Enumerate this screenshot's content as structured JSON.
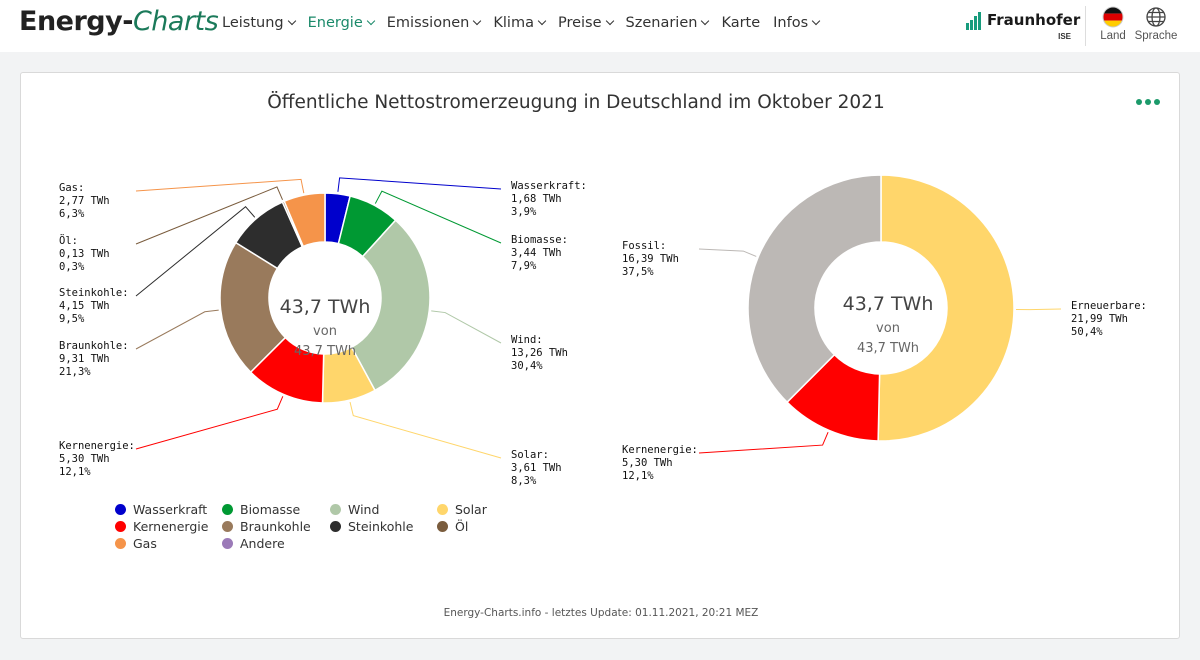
{
  "nav": {
    "logo_part1": "Energy-",
    "logo_part2": "Charts",
    "menu": [
      {
        "label": "Leistung",
        "dropdown": true,
        "active": false
      },
      {
        "label": "Energie",
        "dropdown": true,
        "active": true
      },
      {
        "label": "Emissionen",
        "dropdown": true,
        "active": false
      },
      {
        "label": "Klima",
        "dropdown": true,
        "active": false
      },
      {
        "label": "Preise",
        "dropdown": true,
        "active": false
      },
      {
        "label": "Szenarien",
        "dropdown": true,
        "active": false
      },
      {
        "label": "Karte",
        "dropdown": false,
        "active": false
      },
      {
        "label": "Infos",
        "dropdown": true,
        "active": false
      }
    ],
    "brand": {
      "name": "Fraunhofer",
      "sub": "ISE"
    },
    "land_label": "Land",
    "sprache_label": "Sprache",
    "accent_color": "#1b8a6a"
  },
  "chart_data": [
    {
      "type": "pie",
      "style": "donut",
      "title": "Öffentliche Nettostromerzeugung in Deutschland im Oktober 2021",
      "center": {
        "main": "43,7 TWh",
        "sub1": "von",
        "sub2": "43,7 TWh"
      },
      "unit": "TWh",
      "total": 43.7,
      "slices": [
        {
          "name": "Wasserkraft",
          "value": 1.68,
          "value_label": "1,68 TWh",
          "pct_label": "3,9%",
          "color": "#0000cc",
          "label_side": "right"
        },
        {
          "name": "Biomasse",
          "value": 3.44,
          "value_label": "3,44 TWh",
          "pct_label": "7,9%",
          "color": "#009933",
          "label_side": "right"
        },
        {
          "name": "Wind",
          "value": 13.26,
          "value_label": "13,26 TWh",
          "pct_label": "30,4%",
          "color": "#b0c8a8",
          "label_side": "right"
        },
        {
          "name": "Solar",
          "value": 3.61,
          "value_label": "3,61 TWh",
          "pct_label": "8,3%",
          "color": "#ffd66b",
          "label_side": "right"
        },
        {
          "name": "Kernenergie",
          "value": 5.3,
          "value_label": "5,30 TWh",
          "pct_label": "12,1%",
          "color": "#ff0000",
          "label_side": "left"
        },
        {
          "name": "Braunkohle",
          "value": 9.31,
          "value_label": "9,31 TWh",
          "pct_label": "21,3%",
          "color": "#997a5c",
          "label_side": "left"
        },
        {
          "name": "Steinkohle",
          "value": 4.15,
          "value_label": "4,15 TWh",
          "pct_label": "9,5%",
          "color": "#2d2d2d",
          "label_side": "left"
        },
        {
          "name": "Öl",
          "value": 0.13,
          "value_label": "0,13 TWh",
          "pct_label": "0,3%",
          "color": "#7a5c3d",
          "label_side": "left"
        },
        {
          "name": "Gas",
          "value": 2.77,
          "value_label": "2,77 TWh",
          "pct_label": "6,3%",
          "color": "#f5944a",
          "label_side": "left"
        }
      ],
      "legend": [
        {
          "name": "Wasserkraft",
          "color": "#0000cc"
        },
        {
          "name": "Biomasse",
          "color": "#009933"
        },
        {
          "name": "Wind",
          "color": "#b0c8a8"
        },
        {
          "name": "Solar",
          "color": "#ffd66b"
        },
        {
          "name": "Kernenergie",
          "color": "#ff0000"
        },
        {
          "name": "Braunkohle",
          "color": "#997a5c"
        },
        {
          "name": "Steinkohle",
          "color": "#2d2d2d"
        },
        {
          "name": "Öl",
          "color": "#7a5c3d"
        },
        {
          "name": "Gas",
          "color": "#f5944a"
        },
        {
          "name": "Andere",
          "color": "#9b7ab8"
        }
      ]
    },
    {
      "type": "pie",
      "style": "donut",
      "center": {
        "main": "43,7 TWh",
        "sub1": "von",
        "sub2": "43,7 TWh"
      },
      "unit": "TWh",
      "total": 43.7,
      "slices": [
        {
          "name": "Erneuerbare",
          "value": 21.99,
          "value_label": "21,99 TWh",
          "pct_label": "50,4%",
          "color": "#ffd66b",
          "label_side": "right"
        },
        {
          "name": "Kernenergie",
          "value": 5.3,
          "value_label": "5,30 TWh",
          "pct_label": "12,1%",
          "color": "#ff0000",
          "label_side": "left"
        },
        {
          "name": "Fossil",
          "value": 16.39,
          "value_label": "16,39 TWh",
          "pct_label": "37,5%",
          "color": "#bcb8b5",
          "label_side": "left"
        }
      ]
    }
  ],
  "footer": "Energy-Charts.info - letztes Update: 01.11.2021, 20:21 MEZ"
}
